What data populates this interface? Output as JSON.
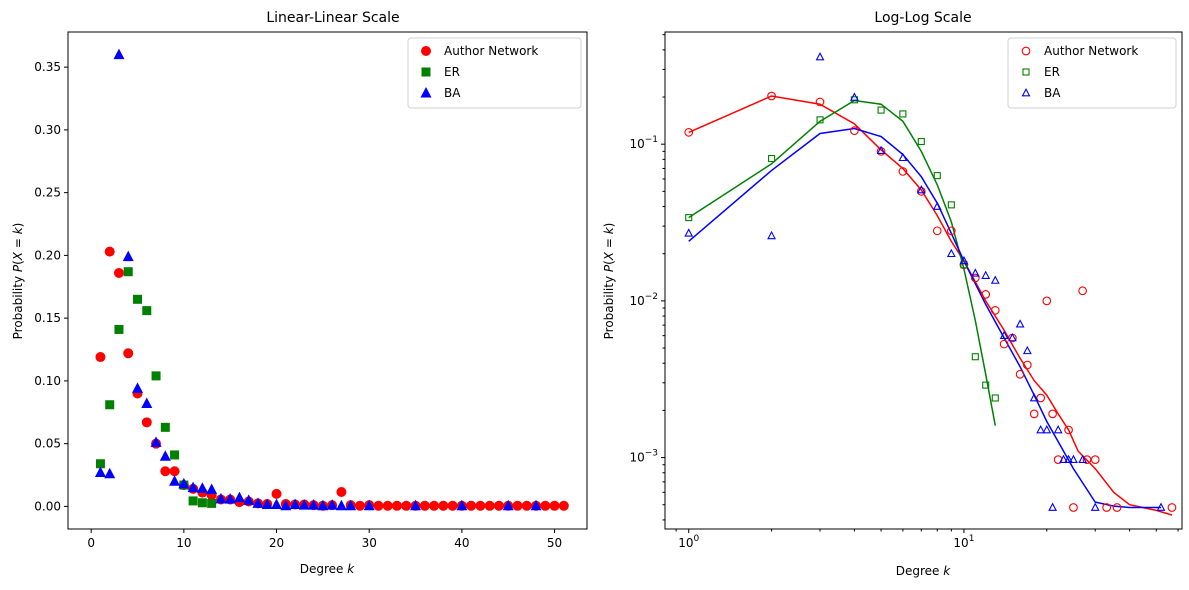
{
  "chart_data": [
    {
      "type": "scatter",
      "title": "Linear-Linear Scale",
      "xlabel": "Degree k",
      "ylabel": "Probability P(X = k)",
      "xlim": [
        -2.5,
        53.5
      ],
      "ylim": [
        -0.018,
        0.378
      ],
      "xscale": "linear",
      "yscale": "linear",
      "xticks": [
        0,
        10,
        20,
        30,
        40,
        50
      ],
      "xtick_labels": [
        "0",
        "10",
        "20",
        "30",
        "40",
        "50"
      ],
      "yticks": [
        0,
        0.05,
        0.1,
        0.15,
        0.2,
        0.25,
        0.3,
        0.35
      ],
      "ytick_labels": [
        "0.00",
        "0.05",
        "0.10",
        "0.15",
        "0.20",
        "0.25",
        "0.30",
        "0.35"
      ],
      "grid": false,
      "legend": "top-right",
      "series": [
        {
          "name": "Author Network",
          "color": "#ff0000",
          "marker": "circle",
          "x": [
            1,
            2,
            3,
            4,
            5,
            6,
            7,
            8,
            9,
            10,
            11,
            12,
            13,
            14,
            15,
            16,
            17,
            18,
            19,
            20,
            21,
            22,
            23,
            24,
            25,
            26,
            27,
            28,
            29,
            30,
            31,
            32,
            33,
            34,
            35,
            36,
            37,
            38,
            39,
            40,
            41,
            42,
            43,
            44,
            45,
            46,
            47,
            48,
            49,
            50,
            51
          ],
          "y": [
            0.119,
            0.203,
            0.186,
            0.122,
            0.09,
            0.067,
            0.05,
            0.028,
            0.028,
            0.017,
            0.014,
            0.011,
            0.009,
            0.0055,
            0.0055,
            0.0034,
            0.0039,
            0.0024,
            0.0019,
            0.01,
            0.0019,
            0.0015,
            0.0015,
            0.001,
            0.0005,
            0.001,
            0.0115,
            0.001,
            0.0005,
            0.001,
            0.0005,
            0.0005,
            0.0005,
            0.0005,
            0.0005,
            0.0005,
            0.0005,
            0.0005,
            0.0005,
            0.0005,
            0.0005,
            0.0005,
            0.0005,
            0.0005,
            0.0005,
            0.0005,
            0.0005,
            0.0005,
            0.0005,
            0.0005,
            0.0005
          ]
        },
        {
          "name": "ER",
          "color": "#008000",
          "marker": "square",
          "x": [
            1,
            2,
            3,
            4,
            5,
            6,
            7,
            8,
            9,
            10,
            11,
            12,
            13
          ],
          "y": [
            0.034,
            0.081,
            0.141,
            0.187,
            0.165,
            0.156,
            0.104,
            0.063,
            0.041,
            0.017,
            0.0044,
            0.0029,
            0.0024
          ]
        },
        {
          "name": "BA",
          "color": "#0000ff",
          "marker": "triangle",
          "x": [
            1,
            2,
            3,
            4,
            5,
            6,
            7,
            8,
            9,
            10,
            11,
            12,
            13,
            14,
            15,
            16,
            17,
            18,
            19,
            20,
            21,
            22,
            23,
            24,
            25,
            26,
            27,
            28,
            30,
            35,
            40,
            45,
            48
          ],
          "y": [
            0.027,
            0.026,
            0.36,
            0.199,
            0.094,
            0.082,
            0.051,
            0.04,
            0.02,
            0.018,
            0.015,
            0.0145,
            0.0135,
            0.006,
            0.0058,
            0.007,
            0.0048,
            0.0024,
            0.0015,
            0.0015,
            0.0005,
            0.0015,
            0.001,
            0.001,
            0.0005,
            0.001,
            0.0005,
            0.0005,
            0.0005,
            0.0005,
            0.0005,
            0.0005,
            0.0005
          ]
        }
      ]
    },
    {
      "type": "scatter",
      "title": "Log-Log Scale",
      "xlabel": "Degree k",
      "ylabel": "Probability P(X = k)",
      "xlim": [
        0.82,
        62
      ],
      "ylim": [
        0.00035,
        0.52
      ],
      "xscale": "log",
      "yscale": "log",
      "xticks": [
        1,
        10
      ],
      "xtick_labels": [
        "10^0",
        "10^1"
      ],
      "yticks": [
        0.001,
        0.01,
        0.1
      ],
      "ytick_labels": [
        "10^-3",
        "10^-2",
        "10^-1"
      ],
      "grid": false,
      "legend": "top-right",
      "series": [
        {
          "name": "Author Network",
          "color": "#ff0000",
          "marker": "open-circle",
          "x": [
            1,
            2,
            3,
            4,
            5,
            6,
            7,
            8,
            9,
            10,
            11,
            12,
            13,
            14,
            15,
            16,
            17,
            18,
            19,
            20,
            21,
            22,
            24,
            25,
            27,
            28,
            30,
            33,
            36,
            57
          ],
          "y": [
            0.119,
            0.203,
            0.186,
            0.122,
            0.09,
            0.067,
            0.05,
            0.028,
            0.028,
            0.017,
            0.014,
            0.011,
            0.0087,
            0.0053,
            0.0058,
            0.0034,
            0.0039,
            0.0019,
            0.0024,
            0.01,
            0.0019,
            0.00097,
            0.0015,
            0.00048,
            0.0116,
            0.00097,
            0.00097,
            0.00048,
            0.00048,
            0.00048
          ],
          "fit_line": {
            "x": [
              1,
              2,
              3,
              4,
              5,
              6,
              7,
              8,
              9,
              10,
              12,
              14,
              16,
              18,
              20,
              22,
              24,
              26,
              30,
              35,
              40,
              50,
              57
            ],
            "y": [
              0.119,
              0.203,
              0.18,
              0.135,
              0.092,
              0.07,
              0.051,
              0.035,
              0.024,
              0.018,
              0.01,
              0.0065,
              0.0043,
              0.0031,
              0.0025,
              0.0019,
              0.0015,
              0.0011,
              0.00085,
              0.0006,
              0.0005,
              0.00046,
              0.00043
            ]
          }
        },
        {
          "name": "ER",
          "color": "#008000",
          "marker": "open-square",
          "x": [
            1,
            2,
            3,
            4,
            5,
            6,
            7,
            8,
            9,
            10,
            11,
            12,
            13
          ],
          "y": [
            0.034,
            0.081,
            0.143,
            0.192,
            0.165,
            0.156,
            0.104,
            0.063,
            0.041,
            0.017,
            0.0044,
            0.0029,
            0.0024
          ],
          "fit_line": {
            "x": [
              1,
              2,
              3,
              4,
              5,
              6,
              7,
              8,
              9,
              10,
              11,
              12,
              13
            ],
            "y": [
              0.034,
              0.075,
              0.14,
              0.19,
              0.18,
              0.14,
              0.09,
              0.055,
              0.032,
              0.016,
              0.0075,
              0.0034,
              0.0016
            ]
          }
        },
        {
          "name": "BA",
          "color": "#0000ff",
          "marker": "open-triangle",
          "x": [
            1,
            2,
            3,
            4,
            5,
            6,
            7,
            8,
            9,
            10,
            11,
            12,
            13,
            14,
            15,
            16,
            17,
            18,
            19,
            20,
            21,
            22,
            23,
            24,
            25,
            27,
            30,
            52
          ],
          "y": [
            0.027,
            0.026,
            0.36,
            0.199,
            0.091,
            0.082,
            0.051,
            0.04,
            0.02,
            0.018,
            0.015,
            0.0145,
            0.0135,
            0.006,
            0.0058,
            0.0071,
            0.0048,
            0.0024,
            0.0015,
            0.0015,
            0.00048,
            0.0015,
            0.00097,
            0.00097,
            0.00097,
            0.00097,
            0.00048,
            0.00048
          ],
          "fit_line": {
            "x": [
              1,
              2,
              3,
              4,
              5,
              6,
              7,
              8,
              9,
              10,
              12,
              14,
              16,
              18,
              20,
              25,
              30,
              35,
              40,
              52
            ],
            "y": [
              0.024,
              0.068,
              0.117,
              0.126,
              0.112,
              0.086,
              0.062,
              0.042,
              0.027,
              0.018,
              0.0095,
              0.0058,
              0.0038,
              0.0025,
              0.0017,
              0.00085,
              0.00052,
              0.00049,
              0.00048,
              0.00048
            ]
          }
        }
      ]
    }
  ]
}
